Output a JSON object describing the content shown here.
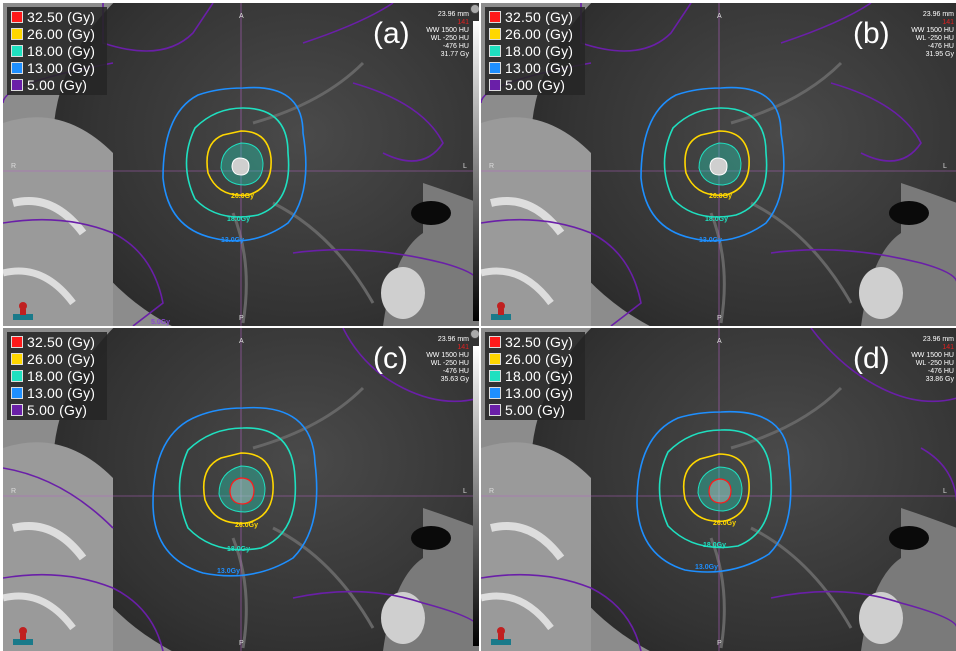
{
  "legend": [
    {
      "label": "32.50 (Gy)",
      "color": "#ff1a1a"
    },
    {
      "label": "26.00 (Gy)",
      "color": "#ffd700"
    },
    {
      "label": "18.00 (Gy)",
      "color": "#1fe0c0"
    },
    {
      "label": "13.00 (Gy)",
      "color": "#1e8fff"
    },
    {
      "label": "5.00 (Gy)",
      "color": "#6a1fa8"
    }
  ],
  "orientation": {
    "top": "A",
    "bottom": "P",
    "left": "R",
    "right": "L"
  },
  "panels": [
    {
      "letter": "(a)",
      "distance": "23.96 mm",
      "slice": "141",
      "ww": "WW 1500 HU",
      "wl": "WL -250 HU",
      "hu": "-476 HU",
      "dose": "31.77 Gy",
      "label_26": "26.0Gy",
      "label_18": "18.0Gy",
      "label_13": "13.0Gy",
      "label_5": "5.0Gy"
    },
    {
      "letter": "(b)",
      "distance": "23.96 mm",
      "slice": "141",
      "ww": "WW 1500 HU",
      "wl": "WL -250 HU",
      "hu": "-476 HU",
      "dose": "31.95 Gy",
      "label_26": "26.0Gy",
      "label_18": "18.0Gy",
      "label_13": "13.0Gy",
      "label_5": ""
    },
    {
      "letter": "(c)",
      "distance": "23.96 mm",
      "slice": "141",
      "ww": "WW 1500 HU",
      "wl": "WL -250 HU",
      "hu": "-476 HU",
      "dose": "35.63 Gy",
      "label_26": "26.0Gy",
      "label_18": "18.0Gy",
      "label_13": "13.0Gy",
      "label_5": ""
    },
    {
      "letter": "(d)",
      "distance": "23.96 mm",
      "slice": "141",
      "ww": "WW 1500 HU",
      "wl": "WL -250 HU",
      "hu": "-476 HU",
      "dose": "33.86 Gy",
      "label_26": "26.0Gy",
      "label_18": "18.0Gy",
      "label_13": "13.0Gy",
      "label_5": ""
    }
  ]
}
